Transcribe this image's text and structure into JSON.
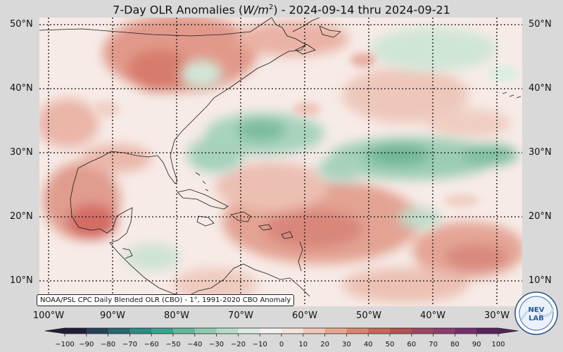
{
  "title": {
    "prefix": "7-Day OLR Anomalies (",
    "unit_base": "W/m",
    "unit_exp": "2",
    "suffix": ") - 2024-09-14 thru 2024-09-21"
  },
  "lat_labels": [
    "50°N",
    "40°N",
    "30°N",
    "20°N",
    "10°N"
  ],
  "lon_labels": [
    "100°W",
    "90°W",
    "80°W",
    "70°W",
    "60°W",
    "50°W",
    "40°W",
    "30°W"
  ],
  "attribution": "NOAA/PSL CPC Daily Blended OLR (CBO) - 1°, 1991-2020 CBO Anomaly",
  "colorbar": {
    "ticks": [
      "−100",
      "−90",
      "−80",
      "−70",
      "−60",
      "−50",
      "−40",
      "−30",
      "−20",
      "−10",
      "0",
      "10",
      "20",
      "30",
      "40",
      "50",
      "60",
      "70",
      "80",
      "90",
      "100"
    ],
    "colors": [
      "#1f1d3a",
      "#27405c",
      "#2a6674",
      "#2c8c82",
      "#3aa38f",
      "#62b79c",
      "#8fcaae",
      "#b8dbc5",
      "#dcece0",
      "#f4f1ee",
      "#f7e4dc",
      "#f0c7b8",
      "#e7a690",
      "#da8570",
      "#c9675a",
      "#b45252",
      "#a04560",
      "#8c3c6e",
      "#722f6c",
      "#56245b"
    ]
  },
  "logo": {
    "text_top": "NEV",
    "text_bottom": "LAB"
  }
}
